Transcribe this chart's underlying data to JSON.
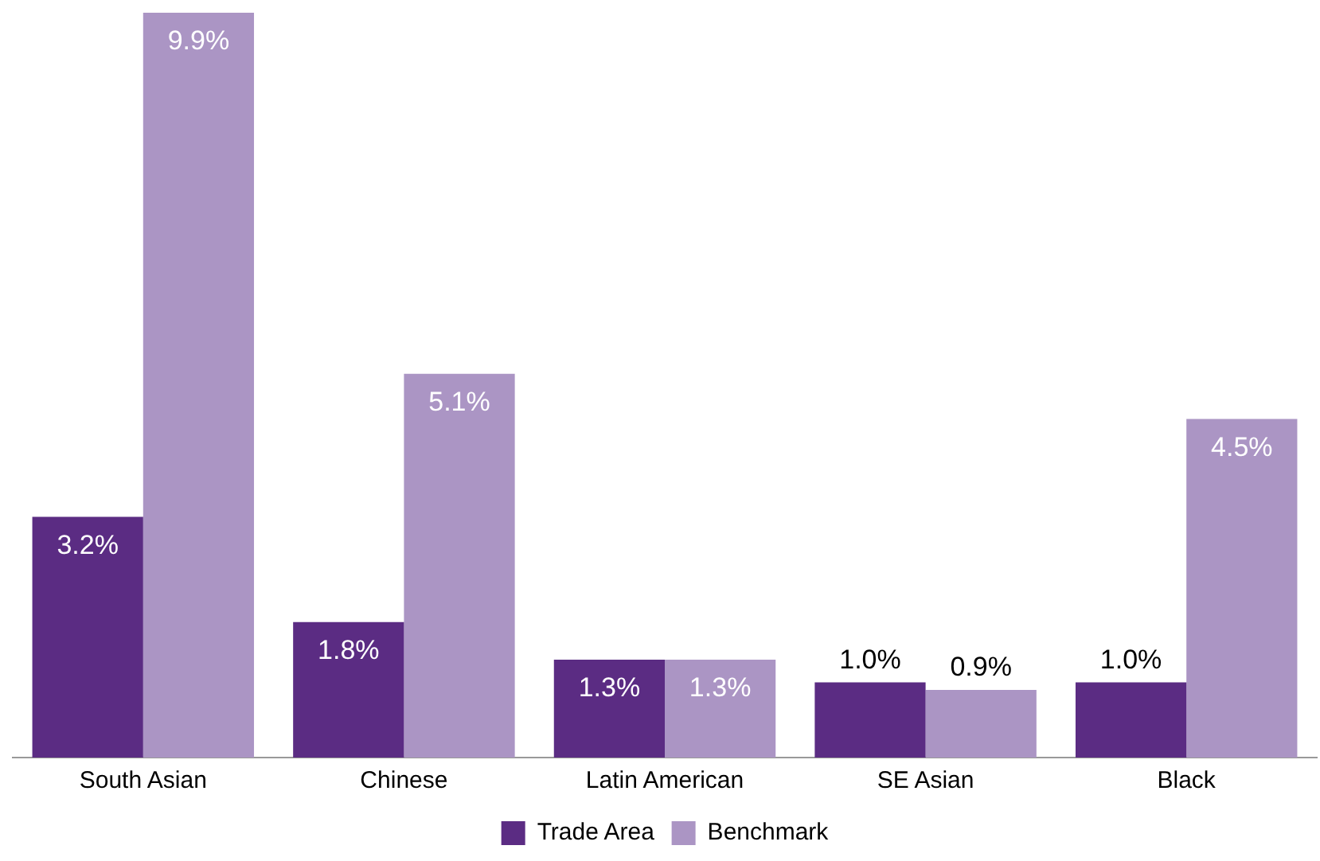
{
  "chart_data": {
    "type": "bar",
    "categories": [
      "South Asian",
      "Chinese",
      "Latin American",
      "SE Asian",
      "Black"
    ],
    "series": [
      {
        "name": "Trade Area",
        "color": "#5b2c83",
        "values": [
          3.2,
          1.8,
          1.3,
          1.0,
          1.0
        ],
        "value_labels": [
          "3.2%",
          "1.8%",
          "1.3%",
          "1.0%",
          "1.0%"
        ]
      },
      {
        "name": "Benchmark",
        "color": "#ab95c4",
        "values": [
          9.9,
          5.1,
          1.3,
          0.9,
          4.5
        ],
        "value_labels": [
          "9.9%",
          "5.1%",
          "1.3%",
          "0.9%",
          "4.5%"
        ]
      }
    ],
    "legend": "bottom",
    "grid": false
  }
}
